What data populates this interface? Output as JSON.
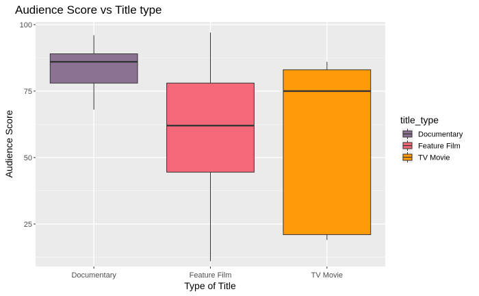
{
  "chart_data": {
    "type": "box",
    "title": "Audience Score vs Title type",
    "xlabel": "Type of Title",
    "ylabel": "Audience Score",
    "ylim": [
      9,
      101
    ],
    "yticks": [
      25,
      50,
      75,
      100
    ],
    "grid": true,
    "legend": {
      "title": "title_type",
      "position": "right"
    },
    "categories": [
      "Documentary",
      "Feature Film",
      "TV Movie"
    ],
    "colors": [
      "#8C7292",
      "#F4687A",
      "#FF9A08"
    ],
    "boxes": [
      {
        "category": "Documentary",
        "min": 68,
        "q1": 78,
        "median": 86,
        "q3": 89,
        "max": 96
      },
      {
        "category": "Feature Film",
        "min": 11,
        "q1": 44.5,
        "median": 62,
        "q3": 78,
        "max": 97
      },
      {
        "category": "TV Movie",
        "min": 19,
        "q1": 21,
        "median": 75,
        "q3": 83,
        "max": 86
      }
    ]
  }
}
